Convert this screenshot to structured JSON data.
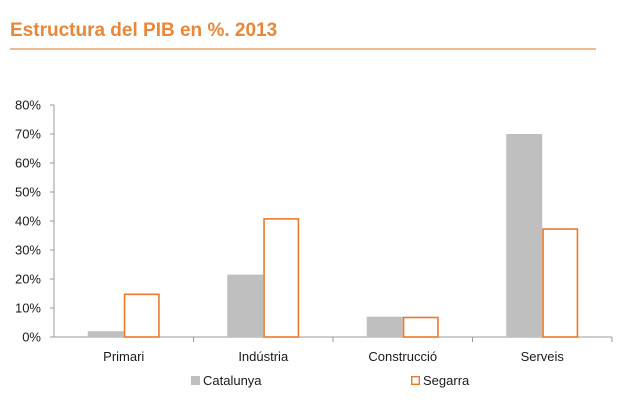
{
  "chart_data": {
    "type": "bar",
    "title": "Estructura del PIB en %. 2013",
    "categories": [
      "Primari",
      "Indústria",
      "Construcció",
      "Serveis"
    ],
    "series": [
      {
        "name": "Catalunya",
        "values": [
          2,
          21.5,
          7,
          70
        ],
        "color": "#bfbfbf",
        "style": "filled"
      },
      {
        "name": "Segarra",
        "values": [
          15,
          41,
          7,
          37.5
        ],
        "color": "#ec7a2a",
        "style": "outline"
      }
    ],
    "yticks": [
      "0%",
      "10%",
      "20%",
      "30%",
      "40%",
      "50%",
      "60%",
      "70%",
      "80%"
    ],
    "ylim": [
      0,
      80
    ],
    "grid": false,
    "legend": "bottom"
  }
}
